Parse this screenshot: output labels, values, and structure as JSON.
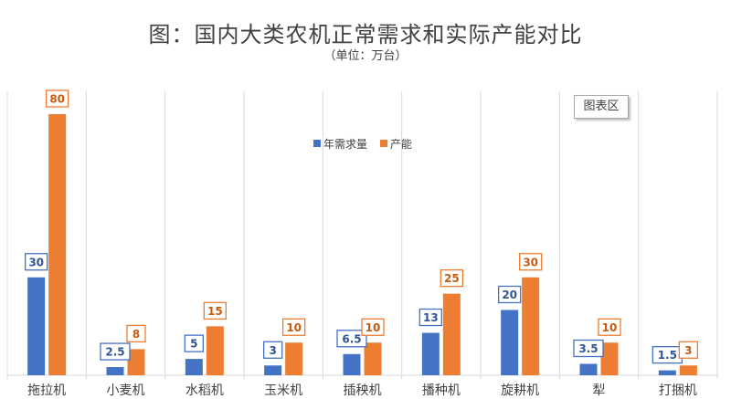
{
  "chart_data": {
    "type": "bar",
    "title": "图：国内大类农机正常需求和实际产能对比",
    "subtitle": "（单位：万台）",
    "categories": [
      "拖拉机",
      "小麦机",
      "水稻机",
      "玉米机",
      "插秧机",
      "播种机",
      "旋耕机",
      "犁",
      "打捆机"
    ],
    "series": [
      {
        "name": "年需求量",
        "color": "#4472c4",
        "values": [
          30,
          2.5,
          5,
          3,
          6.5,
          13,
          20,
          3.5,
          1.5
        ]
      },
      {
        "name": "产能",
        "color": "#ed7d31",
        "values": [
          80,
          8,
          15,
          10,
          10,
          25,
          30,
          10,
          3
        ]
      }
    ],
    "value_labels": [
      [
        "30",
        "2.5",
        "5",
        "3",
        "6.5",
        "13",
        "20",
        "3.5",
        "1.5"
      ],
      [
        "80",
        "8",
        "15",
        "10",
        "10",
        "25",
        "30",
        "10",
        "3"
      ]
    ],
    "ylim": [
      0,
      100
    ],
    "legend_position": "top-center",
    "vertical_gridlines": true,
    "chart_area_label": "图表区"
  }
}
